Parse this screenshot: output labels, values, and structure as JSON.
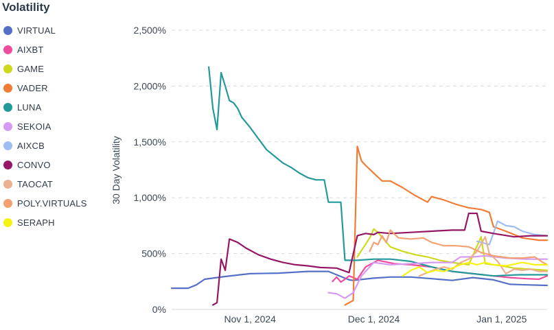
{
  "chart_data": {
    "type": "line",
    "legend_title": "Volatility",
    "legend_position": "left",
    "ylabel": "30 Day Volatility",
    "xlabel": "",
    "y_unit": "%",
    "ylim": [
      0,
      2500
    ],
    "yticks": [
      0,
      500,
      1000,
      1500,
      2000,
      2500
    ],
    "ytick_labels": [
      "0%",
      "500%",
      "1,000%",
      "1,500%",
      "2,000%",
      "2,500%"
    ],
    "xlim": [
      "2024-10-13",
      "2025-01-12"
    ],
    "xticks": [
      "2024-11-01",
      "2024-12-01",
      "2025-01-01"
    ],
    "xtick_labels": [
      "Nov 1, 2024",
      "Dec 1, 2024",
      "Jan 1, 2025"
    ],
    "grid": "horizontal dashed",
    "series": [
      {
        "name": "VIRTUAL",
        "color": "#5470c6",
        "points": [
          [
            "2024-10-13",
            190
          ],
          [
            "2024-10-17",
            190
          ],
          [
            "2024-10-19",
            220
          ],
          [
            "2024-10-21",
            270
          ],
          [
            "2024-10-23",
            280
          ],
          [
            "2024-10-26",
            295
          ],
          [
            "2024-11-01",
            320
          ],
          [
            "2024-11-08",
            325
          ],
          [
            "2024-11-15",
            340
          ],
          [
            "2024-11-20",
            340
          ],
          [
            "2024-11-25",
            265
          ],
          [
            "2024-11-26",
            260
          ],
          [
            "2024-12-01",
            280
          ],
          [
            "2024-12-05",
            290
          ],
          [
            "2024-12-10",
            290
          ],
          [
            "2024-12-15",
            275
          ],
          [
            "2024-12-20",
            260
          ],
          [
            "2024-12-25",
            285
          ],
          [
            "2024-12-30",
            265
          ],
          [
            "2025-01-03",
            225
          ],
          [
            "2025-01-07",
            220
          ],
          [
            "2025-01-12",
            215
          ]
        ]
      },
      {
        "name": "AIXBT",
        "color": "#ee4c9c",
        "points": [
          [
            "2024-11-21",
            250
          ],
          [
            "2024-11-22",
            290
          ],
          [
            "2024-11-23",
            245
          ],
          [
            "2024-11-24",
            270
          ],
          [
            "2024-11-25",
            300
          ],
          [
            "2024-11-27",
            270
          ],
          [
            "2024-11-29",
            380
          ],
          [
            "2024-12-02",
            440
          ],
          [
            "2024-12-06",
            410
          ],
          [
            "2024-12-10",
            400
          ],
          [
            "2024-12-15",
            380
          ],
          [
            "2024-12-20",
            340
          ],
          [
            "2024-12-25",
            320
          ],
          [
            "2024-12-30",
            300
          ],
          [
            "2025-01-03",
            285
          ],
          [
            "2025-01-07",
            275
          ],
          [
            "2025-01-10",
            270
          ],
          [
            "2025-01-12",
            300
          ]
        ]
      },
      {
        "name": "GAME",
        "color": "#cfd91c",
        "points": [
          [
            "2024-11-27",
            470
          ],
          [
            "2024-11-30",
            640
          ],
          [
            "2024-12-01",
            720
          ],
          [
            "2024-12-02",
            690
          ],
          [
            "2024-12-05",
            560
          ],
          [
            "2024-12-08",
            520
          ],
          [
            "2024-12-11",
            490
          ],
          [
            "2024-12-14",
            470
          ],
          [
            "2024-12-17",
            440
          ],
          [
            "2024-12-20",
            420
          ],
          [
            "2024-12-24",
            400
          ],
          [
            "2024-12-27",
            650
          ],
          [
            "2024-12-28",
            410
          ],
          [
            "2025-01-01",
            390
          ],
          [
            "2025-01-04",
            370
          ],
          [
            "2025-01-08",
            360
          ],
          [
            "2025-01-12",
            350
          ]
        ]
      },
      {
        "name": "VADER",
        "color": "#f07c36",
        "points": [
          [
            "2024-11-24",
            40
          ],
          [
            "2024-11-26",
            80
          ],
          [
            "2024-11-27",
            1460
          ],
          [
            "2024-11-28",
            1330
          ],
          [
            "2024-11-29",
            1290
          ],
          [
            "2024-12-01",
            1220
          ],
          [
            "2024-12-03",
            1150
          ],
          [
            "2024-12-05",
            1150
          ],
          [
            "2024-12-08",
            1090
          ],
          [
            "2024-12-11",
            1020
          ],
          [
            "2024-12-14",
            960
          ],
          [
            "2024-12-15",
            1010
          ],
          [
            "2024-12-18",
            980
          ],
          [
            "2024-12-21",
            940
          ],
          [
            "2024-12-24",
            910
          ],
          [
            "2024-12-27",
            895
          ],
          [
            "2024-12-29",
            870
          ],
          [
            "2024-12-30",
            740
          ],
          [
            "2025-01-02",
            700
          ],
          [
            "2025-01-06",
            640
          ],
          [
            "2025-01-10",
            620
          ],
          [
            "2025-01-12",
            620
          ]
        ]
      },
      {
        "name": "LUNA",
        "color": "#22999b",
        "points": [
          [
            "2024-10-22",
            2170
          ],
          [
            "2024-10-23",
            1800
          ],
          [
            "2024-10-24",
            1610
          ],
          [
            "2024-10-25",
            2120
          ],
          [
            "2024-10-26",
            2000
          ],
          [
            "2024-10-27",
            1870
          ],
          [
            "2024-10-28",
            1850
          ],
          [
            "2024-10-29",
            1800
          ],
          [
            "2024-10-30",
            1720
          ],
          [
            "2024-11-01",
            1630
          ],
          [
            "2024-11-03",
            1530
          ],
          [
            "2024-11-05",
            1430
          ],
          [
            "2024-11-07",
            1370
          ],
          [
            "2024-11-09",
            1310
          ],
          [
            "2024-11-11",
            1270
          ],
          [
            "2024-11-13",
            1220
          ],
          [
            "2024-11-15",
            1180
          ],
          [
            "2024-11-17",
            1160
          ],
          [
            "2024-11-19",
            1160
          ],
          [
            "2024-11-20",
            960
          ],
          [
            "2024-11-23",
            960
          ],
          [
            "2024-11-24",
            440
          ],
          [
            "2024-11-27",
            440
          ],
          [
            "2024-12-01",
            450
          ],
          [
            "2024-12-05",
            450
          ],
          [
            "2024-12-10",
            430
          ],
          [
            "2024-12-15",
            380
          ],
          [
            "2024-12-20",
            340
          ],
          [
            "2024-12-25",
            320
          ],
          [
            "2024-12-30",
            300
          ],
          [
            "2025-01-05",
            310
          ],
          [
            "2025-01-12",
            310
          ]
        ]
      },
      {
        "name": "SEKOIA",
        "color": "#d69af5",
        "points": [
          [
            "2024-11-20",
            150
          ],
          [
            "2024-11-22",
            140
          ],
          [
            "2024-11-24",
            100
          ],
          [
            "2024-11-26",
            150
          ],
          [
            "2024-11-28",
            300
          ],
          [
            "2024-12-01",
            420
          ],
          [
            "2024-12-05",
            400
          ],
          [
            "2024-12-10",
            410
          ],
          [
            "2024-12-15",
            420
          ],
          [
            "2024-12-20",
            420
          ],
          [
            "2024-12-22",
            470
          ],
          [
            "2024-12-25",
            470
          ],
          [
            "2024-12-28",
            480
          ],
          [
            "2025-01-02",
            460
          ],
          [
            "2025-01-07",
            450
          ],
          [
            "2025-01-12",
            450
          ]
        ]
      },
      {
        "name": "AIXCB",
        "color": "#9dbdf3",
        "points": [
          [
            "2024-12-26",
            610
          ],
          [
            "2024-12-29",
            580
          ],
          [
            "2024-12-31",
            790
          ],
          [
            "2025-01-02",
            750
          ],
          [
            "2025-01-04",
            740
          ],
          [
            "2025-01-06",
            700
          ],
          [
            "2025-01-09",
            670
          ],
          [
            "2025-01-12",
            660
          ]
        ]
      },
      {
        "name": "CONVO",
        "color": "#951664",
        "points": [
          [
            "2024-10-23",
            40
          ],
          [
            "2024-10-24",
            60
          ],
          [
            "2024-10-25",
            450
          ],
          [
            "2024-10-26",
            350
          ],
          [
            "2024-10-27",
            630
          ],
          [
            "2024-10-29",
            600
          ],
          [
            "2024-10-31",
            550
          ],
          [
            "2024-11-03",
            490
          ],
          [
            "2024-11-06",
            450
          ],
          [
            "2024-11-09",
            420
          ],
          [
            "2024-11-12",
            400
          ],
          [
            "2024-11-15",
            390
          ],
          [
            "2024-11-18",
            375
          ],
          [
            "2024-11-22",
            370
          ],
          [
            "2024-11-25",
            330
          ],
          [
            "2024-11-27",
            660
          ],
          [
            "2024-11-29",
            680
          ],
          [
            "2024-12-01",
            670
          ],
          [
            "2024-12-02",
            690
          ],
          [
            "2024-12-05",
            680
          ],
          [
            "2024-12-10",
            690
          ],
          [
            "2024-12-15",
            700
          ],
          [
            "2024-12-20",
            710
          ],
          [
            "2024-12-23",
            710
          ],
          [
            "2024-12-24",
            860
          ],
          [
            "2024-12-26",
            860
          ],
          [
            "2024-12-27",
            700
          ],
          [
            "2024-12-30",
            680
          ],
          [
            "2025-01-04",
            650
          ],
          [
            "2025-01-08",
            660
          ],
          [
            "2025-01-12",
            660
          ]
        ]
      },
      {
        "name": "TAOCAT",
        "color": "#ebb08e",
        "points": [
          [
            "2024-12-12",
            300
          ],
          [
            "2024-12-14",
            330
          ],
          [
            "2024-12-16",
            360
          ],
          [
            "2024-12-18",
            380
          ],
          [
            "2024-12-20",
            360
          ],
          [
            "2024-12-22",
            420
          ],
          [
            "2024-12-24",
            450
          ],
          [
            "2024-12-26",
            520
          ],
          [
            "2024-12-28",
            650
          ],
          [
            "2024-12-29",
            500
          ],
          [
            "2024-12-31",
            430
          ],
          [
            "2025-01-02",
            320
          ],
          [
            "2025-01-04",
            360
          ],
          [
            "2025-01-06",
            350
          ],
          [
            "2025-01-08",
            360
          ],
          [
            "2025-01-10",
            340
          ],
          [
            "2025-01-12",
            340
          ]
        ]
      },
      {
        "name": "POLY.VIRTUALS",
        "color": "#f5a072",
        "points": [
          [
            "2024-11-30",
            520
          ],
          [
            "2024-12-01",
            600
          ],
          [
            "2024-12-02",
            580
          ],
          [
            "2024-12-03",
            660
          ],
          [
            "2024-12-04",
            600
          ],
          [
            "2024-12-05",
            710
          ],
          [
            "2024-12-07",
            640
          ],
          [
            "2024-12-10",
            630
          ],
          [
            "2024-12-13",
            640
          ],
          [
            "2024-12-15",
            600
          ],
          [
            "2024-12-18",
            570
          ],
          [
            "2024-12-21",
            570
          ],
          [
            "2024-12-24",
            560
          ],
          [
            "2024-12-27",
            510
          ],
          [
            "2024-12-30",
            480
          ],
          [
            "2025-01-03",
            460
          ],
          [
            "2025-01-06",
            460
          ],
          [
            "2025-01-09",
            470
          ],
          [
            "2025-01-11",
            420
          ],
          [
            "2025-01-12",
            400
          ]
        ]
      },
      {
        "name": "SERAPH",
        "color": "#f6f40f",
        "points": [
          [
            "2024-12-08",
            300
          ],
          [
            "2024-12-10",
            350
          ],
          [
            "2024-12-12",
            380
          ],
          [
            "2024-12-14",
            330
          ],
          [
            "2024-12-16",
            350
          ],
          [
            "2024-12-18",
            340
          ],
          [
            "2024-12-20",
            370
          ],
          [
            "2024-12-22",
            400
          ],
          [
            "2024-12-24",
            420
          ],
          [
            "2024-12-26",
            400
          ],
          [
            "2024-12-28",
            420
          ],
          [
            "2024-12-30",
            400
          ],
          [
            "2025-01-02",
            390
          ],
          [
            "2025-01-06",
            420
          ],
          [
            "2025-01-09",
            400
          ],
          [
            "2025-01-12",
            400
          ]
        ]
      }
    ]
  }
}
